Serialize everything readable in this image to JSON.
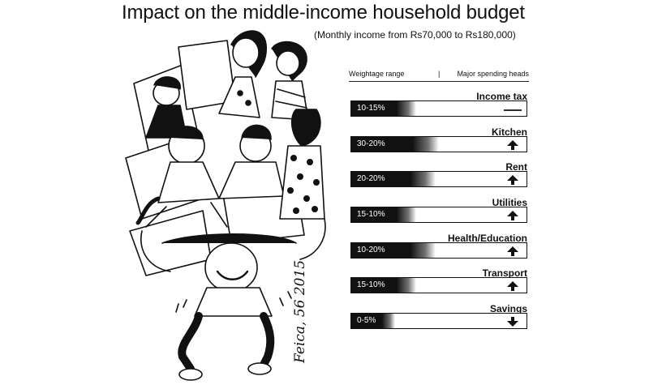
{
  "header": {
    "title": "Impact on the middle-income household budget",
    "subtitle": "(Monthly income from Rs70,000 to Rs180,000)"
  },
  "legend": {
    "left": "Weightage range",
    "separator": "|",
    "right": "Major spending heads"
  },
  "signature": "Feica, 56 2015",
  "rows": [
    {
      "label": "Income tax",
      "range": "10-15%",
      "fill": 0.37,
      "indicator": "flat"
    },
    {
      "label": "Kitchen",
      "range": "30-20%",
      "fill": 0.5,
      "indicator": "up"
    },
    {
      "label": "Rent",
      "range": "20-20%",
      "fill": 0.48,
      "indicator": "up"
    },
    {
      "label": "Utilities",
      "range": "15-10%",
      "fill": 0.37,
      "indicator": "up"
    },
    {
      "label": "Health/Education",
      "range": "10-20%",
      "fill": 0.48,
      "indicator": "up"
    },
    {
      "label": "Transport",
      "range": "15-10%",
      "fill": 0.37,
      "indicator": "up"
    },
    {
      "label": "Savings",
      "range": "0-5%",
      "fill": 0.25,
      "indicator": "down"
    }
  ]
}
